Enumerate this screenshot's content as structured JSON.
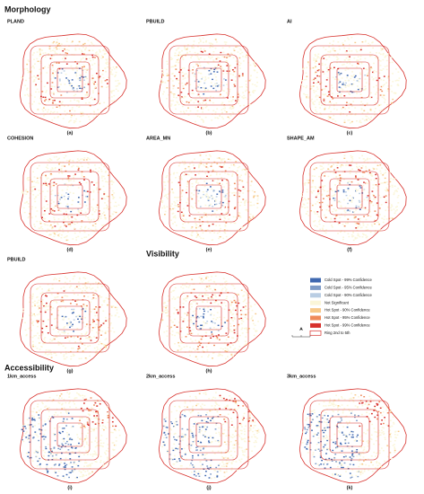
{
  "sections": {
    "morphology": "Morphology",
    "visibility": "Visibility",
    "accessibility": "Accessibility"
  },
  "panels": [
    {
      "title": "PLAND",
      "caption": "(a)"
    },
    {
      "title": "PBUILD",
      "caption": "(b)"
    },
    {
      "title": "AI",
      "caption": "(c)"
    },
    {
      "title": "COHESION",
      "caption": "(d)"
    },
    {
      "title": "AREA_MN",
      "caption": "(e)"
    },
    {
      "title": "SHAPE_AM",
      "caption": "(f)"
    },
    {
      "title": "PBUILD",
      "caption": "(g)"
    },
    {
      "caption": "(h)"
    },
    {
      "title": "1km_access",
      "caption": "(i)"
    },
    {
      "title": "2km_access",
      "caption": "(j)"
    },
    {
      "title": "3km_access",
      "caption": "(k)"
    }
  ],
  "legend": {
    "items": [
      {
        "label": "Cold Spot - 99% Confidence",
        "color": "#3f68b0"
      },
      {
        "label": "Cold Spot - 95% Confidence",
        "color": "#7f9cc8"
      },
      {
        "label": "Cold Spot - 90% Confidence",
        "color": "#b9cde3"
      },
      {
        "label": "Not Significant",
        "color": "#fbf6d8"
      },
      {
        "label": "Hot Spot - 90% Confidence",
        "color": "#f7c98a"
      },
      {
        "label": "Hot Spot - 95% Confidence",
        "color": "#ef8a5a"
      },
      {
        "label": "Hot Spot - 99% Confidence",
        "color": "#d7302b"
      },
      {
        "label": "Ring 2nd to 5th",
        "color": "#d7302b"
      }
    ]
  }
}
